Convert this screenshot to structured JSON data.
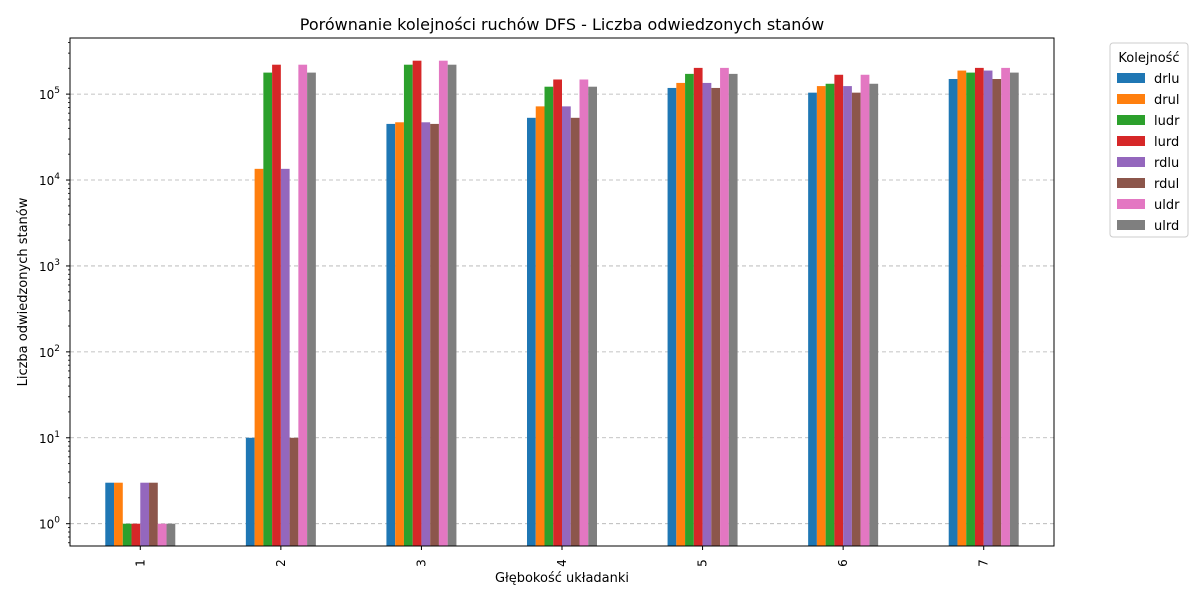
{
  "chart_data": {
    "type": "bar",
    "title": "Porównanie kolejności ruchów DFS - Liczba odwiedzonych stanów",
    "xlabel": "Głębokość układanki",
    "ylabel": "Liczba odwiedzonych stanów",
    "yscale": "log",
    "ylim": [
      0.55,
      450000
    ],
    "grid": true,
    "legend_title": "Kolejność",
    "legend_position": "outside-top-right",
    "categories": [
      "1",
      "2",
      "3",
      "4",
      "5",
      "6",
      "7"
    ],
    "y_tick_labels": [
      {
        "value": 1,
        "base": "10",
        "exp": "0"
      },
      {
        "value": 10,
        "base": "10",
        "exp": "1"
      },
      {
        "value": 100,
        "base": "10",
        "exp": "2"
      },
      {
        "value": 1000,
        "base": "10",
        "exp": "3"
      },
      {
        "value": 10000,
        "base": "10",
        "exp": "4"
      },
      {
        "value": 100000,
        "base": "10",
        "exp": "5"
      }
    ],
    "series": [
      {
        "name": "drlu",
        "color": "#1f77b4",
        "values": [
          3,
          10,
          45000,
          53000,
          118000,
          104000,
          150000
        ]
      },
      {
        "name": "drul",
        "color": "#ff7f0e",
        "values": [
          3,
          13500,
          47000,
          72000,
          135000,
          124000,
          188000
        ]
      },
      {
        "name": "ludr",
        "color": "#2ca02c",
        "values": [
          1,
          178000,
          220000,
          122000,
          172000,
          132000,
          178000
        ]
      },
      {
        "name": "lurd",
        "color": "#d62728",
        "values": [
          1,
          220000,
          245000,
          148000,
          202000,
          168000,
          202000
        ]
      },
      {
        "name": "rdlu",
        "color": "#9467bd",
        "values": [
          3,
          13500,
          47000,
          72000,
          135000,
          124000,
          188000
        ]
      },
      {
        "name": "rdul",
        "color": "#8c564b",
        "values": [
          3,
          10,
          45000,
          53000,
          118000,
          104000,
          150000
        ]
      },
      {
        "name": "uldr",
        "color": "#e377c2",
        "values": [
          1,
          220000,
          245000,
          148000,
          202000,
          168000,
          202000
        ]
      },
      {
        "name": "ulrd",
        "color": "#7f7f7f",
        "values": [
          1,
          178000,
          220000,
          122000,
          172000,
          132000,
          178000
        ]
      }
    ]
  }
}
